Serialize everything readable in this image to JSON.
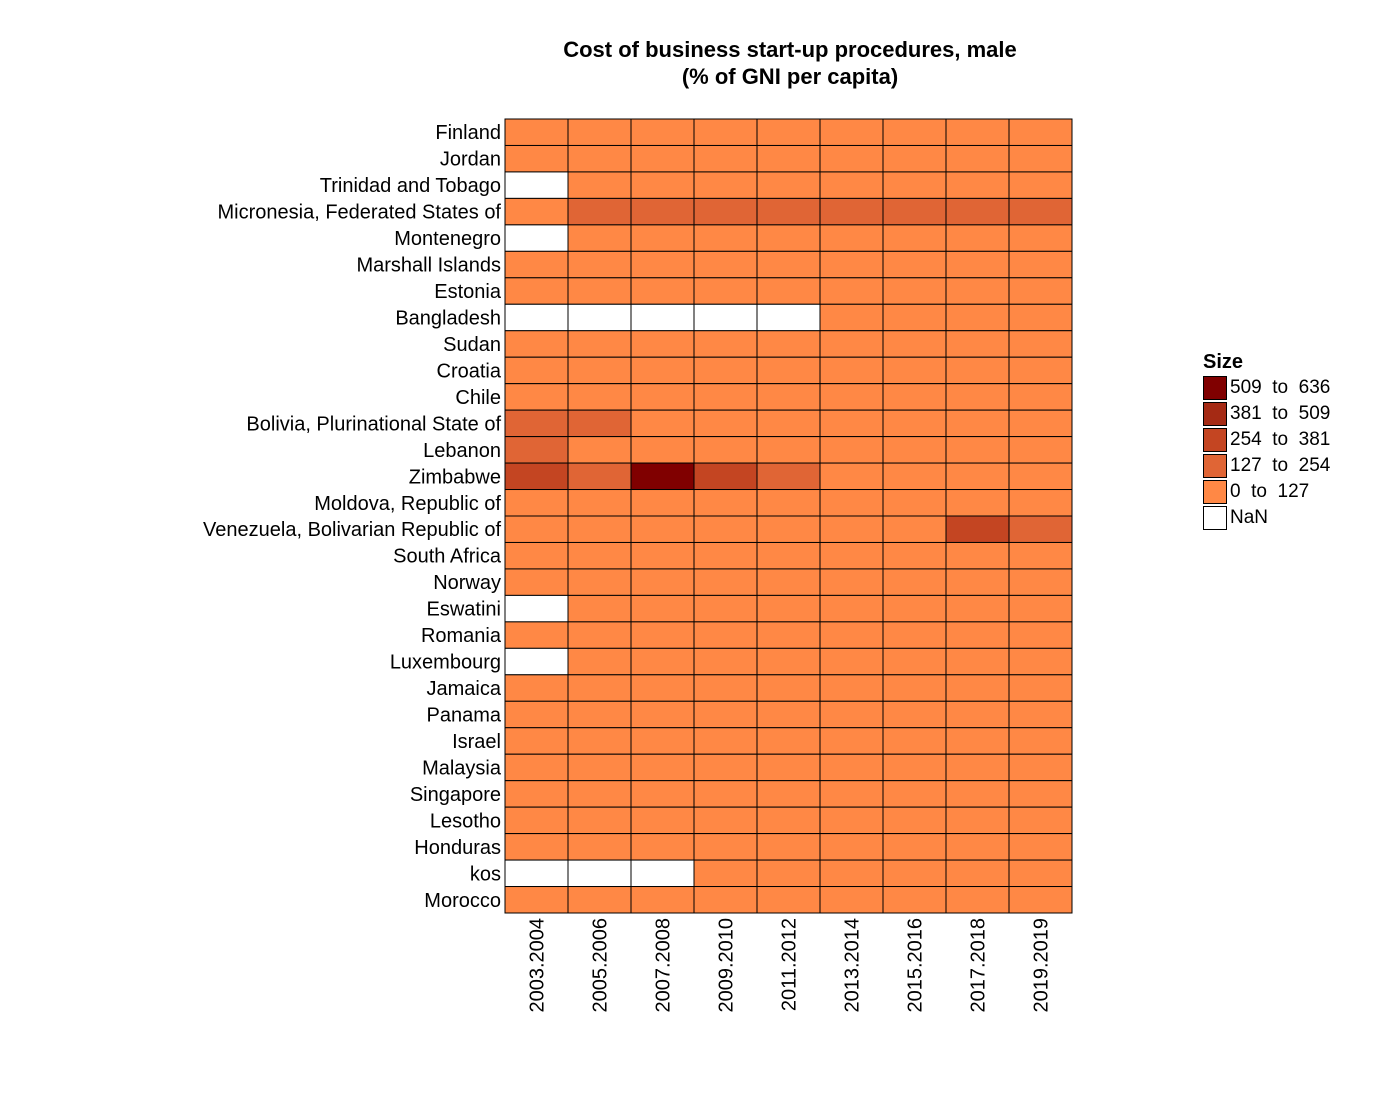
{
  "chart_data": {
    "type": "heatmap",
    "title": "Cost of business start-up procedures, male",
    "subtitle": "(% of GNI per capita)",
    "columns": [
      "2003.2004",
      "2005.2006",
      "2007.2008",
      "2009.2010",
      "2011.2012",
      "2013.2014",
      "2015.2016",
      "2017.2018",
      "2019.2019"
    ],
    "rows": [
      "Finland",
      "Jordan",
      "Trinidad and Tobago",
      "Micronesia, Federated States of",
      "Montenegro",
      "Marshall Islands",
      "Estonia",
      "Bangladesh",
      "Sudan",
      "Croatia",
      "Chile",
      "Bolivia, Plurinational State of",
      "Lebanon",
      "Zimbabwe",
      "Moldova, Republic of",
      "Venezuela, Bolivarian Republic of",
      "South Africa",
      "Norway",
      "Eswatini",
      "Romania",
      "Luxembourg",
      "Jamaica",
      "Panama",
      "Israel",
      "Malaysia",
      "Singapore",
      "Lesotho",
      "Honduras",
      "kos",
      "Morocco"
    ],
    "bins": [
      [
        0,
        0,
        0,
        0,
        0,
        0,
        0,
        0,
        0
      ],
      [
        0,
        0,
        0,
        0,
        0,
        0,
        0,
        0,
        0
      ],
      [
        -1,
        0,
        0,
        0,
        0,
        0,
        0,
        0,
        0
      ],
      [
        0,
        1,
        1,
        1,
        1,
        1,
        1,
        1,
        1
      ],
      [
        -1,
        0,
        0,
        0,
        0,
        0,
        0,
        0,
        0
      ],
      [
        0,
        0,
        0,
        0,
        0,
        0,
        0,
        0,
        0
      ],
      [
        0,
        0,
        0,
        0,
        0,
        0,
        0,
        0,
        0
      ],
      [
        -1,
        -1,
        -1,
        -1,
        -1,
        0,
        0,
        0,
        0
      ],
      [
        0,
        0,
        0,
        0,
        0,
        0,
        0,
        0,
        0
      ],
      [
        0,
        0,
        0,
        0,
        0,
        0,
        0,
        0,
        0
      ],
      [
        0,
        0,
        0,
        0,
        0,
        0,
        0,
        0,
        0
      ],
      [
        1,
        1,
        0,
        0,
        0,
        0,
        0,
        0,
        0
      ],
      [
        1,
        0,
        0,
        0,
        0,
        0,
        0,
        0,
        0
      ],
      [
        2,
        1,
        4,
        2,
        1,
        0,
        0,
        0,
        0
      ],
      [
        0,
        0,
        0,
        0,
        0,
        0,
        0,
        0,
        0
      ],
      [
        0,
        0,
        0,
        0,
        0,
        0,
        0,
        2,
        1
      ],
      [
        0,
        0,
        0,
        0,
        0,
        0,
        0,
        0,
        0
      ],
      [
        0,
        0,
        0,
        0,
        0,
        0,
        0,
        0,
        0
      ],
      [
        -1,
        0,
        0,
        0,
        0,
        0,
        0,
        0,
        0
      ],
      [
        0,
        0,
        0,
        0,
        0,
        0,
        0,
        0,
        0
      ],
      [
        -1,
        0,
        0,
        0,
        0,
        0,
        0,
        0,
        0
      ],
      [
        0,
        0,
        0,
        0,
        0,
        0,
        0,
        0,
        0
      ],
      [
        0,
        0,
        0,
        0,
        0,
        0,
        0,
        0,
        0
      ],
      [
        0,
        0,
        0,
        0,
        0,
        0,
        0,
        0,
        0
      ],
      [
        0,
        0,
        0,
        0,
        0,
        0,
        0,
        0,
        0
      ],
      [
        0,
        0,
        0,
        0,
        0,
        0,
        0,
        0,
        0
      ],
      [
        0,
        0,
        0,
        0,
        0,
        0,
        0,
        0,
        0
      ],
      [
        0,
        0,
        0,
        0,
        0,
        0,
        0,
        0,
        0
      ],
      [
        -1,
        -1,
        -1,
        0,
        0,
        0,
        0,
        0,
        0
      ],
      [
        0,
        0,
        0,
        0,
        0,
        0,
        0,
        0,
        0
      ]
    ],
    "legend": {
      "title": "Size",
      "placement": "right",
      "items": [
        {
          "label": "509  to  636",
          "color": "#800000",
          "bin": 4
        },
        {
          "label": "381  to  509",
          "color": "#A52A14",
          "bin": 3
        },
        {
          "label": "254  to  381",
          "color": "#C44522",
          "bin": 2
        },
        {
          "label": "127  to  254",
          "color": "#E06535",
          "bin": 1
        },
        {
          "label": "0  to  127",
          "color": "#FF8845",
          "bin": 0
        },
        {
          "label": "NaN",
          "color": "#FFFFFF",
          "bin": -1
        }
      ]
    }
  }
}
